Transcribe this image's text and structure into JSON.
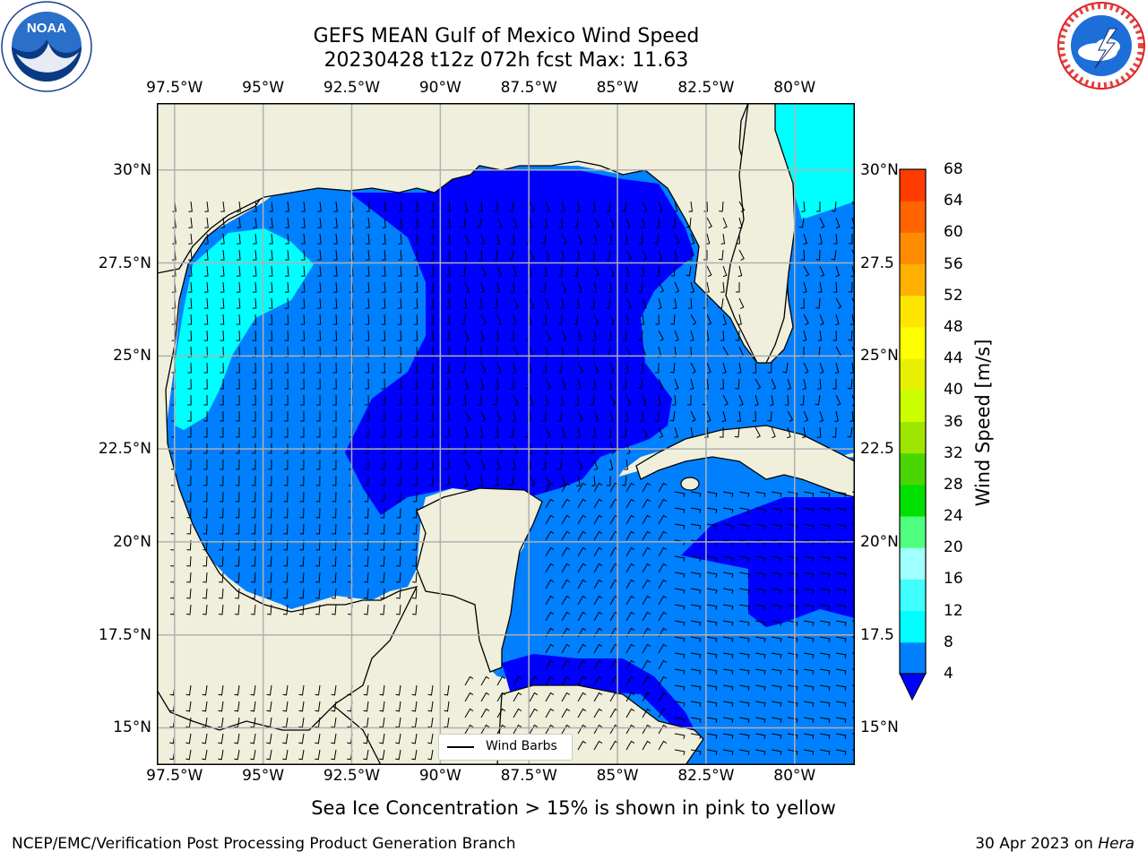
{
  "title": {
    "line1": "GEFS MEAN Gulf of Mexico Wind Speed",
    "line2": "20230428 t12z 072h fcst   Max: 11.63"
  },
  "logos": {
    "left": {
      "name": "noaa-logo",
      "text": "NOAA",
      "ring_text": "NATIONAL OCEANIC AND ATMOSPHERIC ADMINISTRATION · U.S. DEPARTMENT OF COMMERCE"
    },
    "right": {
      "name": "nws-logo",
      "ring_text": "NATIONAL WEATHER SERVICE"
    }
  },
  "map": {
    "lon_ticks": [
      "97.5°W",
      "95°W",
      "92.5°W",
      "90°W",
      "87.5°W",
      "85°W",
      "82.5°W",
      "80°W"
    ],
    "lat_ticks_left": [
      "30°N",
      "27.5°N",
      "25°N",
      "22.5°N",
      "20°N",
      "17.5°N",
      "15°N"
    ],
    "lat_ticks_right": [
      "30°N",
      "27.5",
      "25°N",
      "22.5",
      "20°N",
      "17.5",
      "15°N"
    ],
    "lon_range": [
      -98,
      -78.3
    ],
    "lat_range": [
      14,
      31.8
    ],
    "grid": true,
    "legend": {
      "label": "Wind Barbs",
      "placement": "lower-center"
    },
    "colors": {
      "land": "#efefdc",
      "low": "#0000ff",
      "mid": "#0080ff",
      "high": "#00ffff",
      "grid": "#b0b0b0"
    }
  },
  "colorbar": {
    "label": "Wind Speed [m/s]",
    "ticks": [
      "68",
      "64",
      "60",
      "56",
      "52",
      "48",
      "44",
      "40",
      "36",
      "32",
      "28",
      "24",
      "20",
      "16",
      "12",
      "8",
      "4"
    ],
    "colors": [
      "#0080ff",
      "#00ffff",
      "#40ffff",
      "#a0ffff",
      "#50ff80",
      "#00e000",
      "#4ad600",
      "#9ee600",
      "#ccff00",
      "#e6f000",
      "#ffff00",
      "#ffe600",
      "#ffb000",
      "#ff8c00",
      "#ff6400",
      "#ff3c00",
      "#ff0000"
    ],
    "extend_color": "#0000ff"
  },
  "note": "Sea Ice Concentration > 15% is shown in pink to yellow",
  "footer": {
    "left": "NCEP/EMC/Verification Post Processing Product Generation Branch",
    "right_date": "30 Apr 2023 on ",
    "right_host": "Hera"
  }
}
